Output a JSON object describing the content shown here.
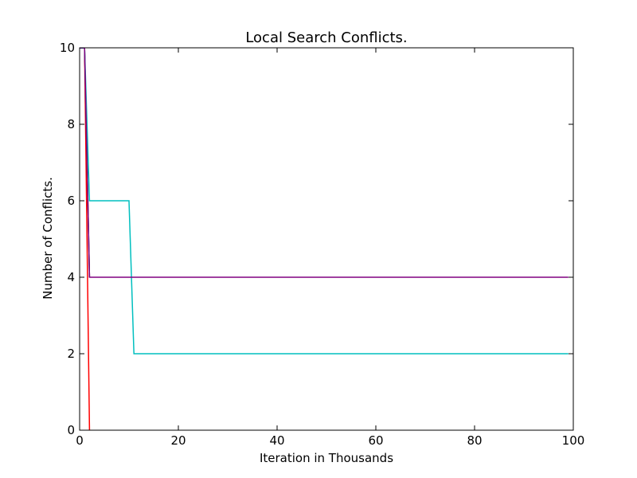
{
  "chart_data": {
    "type": "line",
    "title": "Local Search Conflicts.",
    "xlabel": "Iteration in Thousands",
    "ylabel": "Number of Conflicts.",
    "xlim": [
      0,
      100
    ],
    "ylim": [
      0,
      10
    ],
    "xticks": [
      0,
      20,
      40,
      60,
      80,
      100
    ],
    "yticks": [
      0,
      2,
      4,
      6,
      8,
      10
    ],
    "grid": false,
    "series": [
      {
        "color": "#ff0000",
        "x": [
          0,
          1,
          2
        ],
        "y": [
          10,
          10,
          0
        ]
      },
      {
        "color": "#000000",
        "x": [
          0,
          1,
          2
        ],
        "y": [
          10,
          10,
          4
        ]
      },
      {
        "color": "#00bfbf",
        "x": [
          0,
          1,
          2,
          10,
          11,
          99
        ],
        "y": [
          10,
          10,
          6,
          6,
          2,
          2
        ]
      },
      {
        "color": "#0000ff",
        "x": [
          0,
          1
        ],
        "y": [
          10,
          10
        ]
      },
      {
        "color": "#800080",
        "x": [
          0,
          1,
          2,
          99
        ],
        "y": [
          10,
          10,
          4,
          4
        ]
      }
    ]
  }
}
